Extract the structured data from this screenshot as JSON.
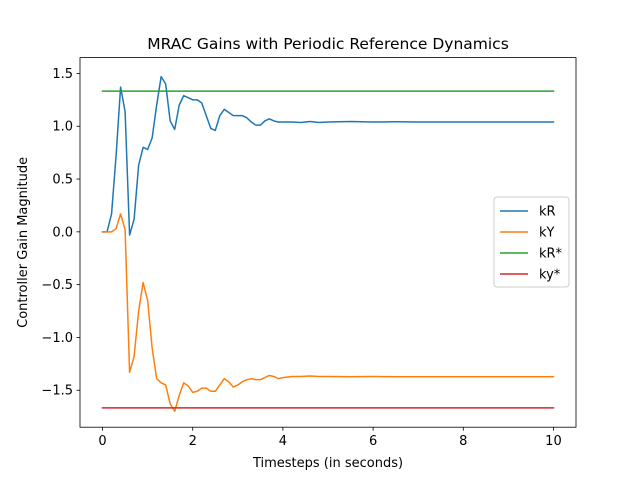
{
  "chart_data": {
    "type": "line",
    "title": "MRAC Gains with Periodic Reference Dynamics",
    "xlabel": "Timesteps (in seconds)",
    "ylabel": "Controller Gain Magnitude",
    "xlim": [
      -0.5,
      10.5
    ],
    "ylim": [
      -1.85,
      1.65
    ],
    "xticks": [
      0,
      2,
      4,
      6,
      8,
      10
    ],
    "xtick_labels": [
      "0",
      "2",
      "4",
      "6",
      "8",
      "10"
    ],
    "yticks": [
      1.5,
      1.0,
      0.5,
      0.0,
      -0.5,
      -1.0,
      -1.5
    ],
    "ytick_labels": [
      "1.5",
      "1.0",
      "0.5",
      "0.0",
      "−0.5",
      "−1.0",
      "−1.5"
    ],
    "grid": false,
    "legend_position": "center-right",
    "series": [
      {
        "name": "kR",
        "color": "#1f77b4",
        "x": [
          0,
          0.1,
          0.2,
          0.3,
          0.4,
          0.5,
          0.6,
          0.7,
          0.8,
          0.9,
          1.0,
          1.1,
          1.2,
          1.3,
          1.4,
          1.5,
          1.6,
          1.7,
          1.8,
          1.9,
          2.0,
          2.1,
          2.2,
          2.3,
          2.4,
          2.5,
          2.6,
          2.7,
          2.8,
          2.9,
          3.0,
          3.1,
          3.2,
          3.3,
          3.4,
          3.5,
          3.6,
          3.7,
          3.8,
          3.9,
          4.0,
          4.2,
          4.4,
          4.6,
          4.8,
          5.0,
          5.5,
          6.0,
          6.5,
          7.0,
          8.0,
          9.0,
          10.0
        ],
        "values": [
          0.0,
          0.0,
          0.17,
          0.72,
          1.37,
          1.14,
          -0.03,
          0.12,
          0.63,
          0.8,
          0.78,
          0.89,
          1.2,
          1.47,
          1.4,
          1.05,
          0.97,
          1.2,
          1.29,
          1.27,
          1.25,
          1.25,
          1.22,
          1.1,
          0.98,
          0.96,
          1.1,
          1.16,
          1.13,
          1.1,
          1.1,
          1.1,
          1.08,
          1.04,
          1.01,
          1.01,
          1.05,
          1.07,
          1.05,
          1.04,
          1.04,
          1.04,
          1.035,
          1.045,
          1.035,
          1.04,
          1.045,
          1.04,
          1.042,
          1.04,
          1.04,
          1.04,
          1.04
        ]
      },
      {
        "name": "kY",
        "color": "#ff7f0e",
        "x": [
          0,
          0.1,
          0.2,
          0.3,
          0.4,
          0.5,
          0.6,
          0.7,
          0.8,
          0.9,
          1.0,
          1.1,
          1.2,
          1.3,
          1.4,
          1.5,
          1.6,
          1.7,
          1.8,
          1.9,
          2.0,
          2.1,
          2.2,
          2.3,
          2.4,
          2.5,
          2.6,
          2.7,
          2.8,
          2.9,
          3.0,
          3.1,
          3.2,
          3.3,
          3.4,
          3.5,
          3.6,
          3.7,
          3.8,
          3.9,
          4.0,
          4.2,
          4.4,
          4.6,
          4.8,
          5.0,
          5.5,
          6.0,
          6.5,
          7.0,
          8.0,
          9.0,
          10.0
        ],
        "values": [
          0.0,
          0.0,
          0.0,
          0.03,
          0.17,
          0.02,
          -1.33,
          -1.18,
          -0.75,
          -0.48,
          -0.65,
          -1.1,
          -1.39,
          -1.43,
          -1.45,
          -1.63,
          -1.7,
          -1.55,
          -1.43,
          -1.46,
          -1.52,
          -1.51,
          -1.48,
          -1.48,
          -1.51,
          -1.51,
          -1.45,
          -1.39,
          -1.42,
          -1.47,
          -1.45,
          -1.42,
          -1.4,
          -1.39,
          -1.4,
          -1.4,
          -1.38,
          -1.36,
          -1.37,
          -1.39,
          -1.38,
          -1.37,
          -1.37,
          -1.365,
          -1.37,
          -1.37,
          -1.372,
          -1.37,
          -1.372,
          -1.372,
          -1.372,
          -1.372,
          -1.372
        ]
      },
      {
        "name": "kR*",
        "color": "#2ca02c",
        "x": [
          0,
          10
        ],
        "values": [
          1.333,
          1.333
        ]
      },
      {
        "name": "ky*",
        "color": "#d62728",
        "x": [
          0,
          10
        ],
        "values": [
          -1.667,
          -1.667
        ]
      }
    ]
  }
}
